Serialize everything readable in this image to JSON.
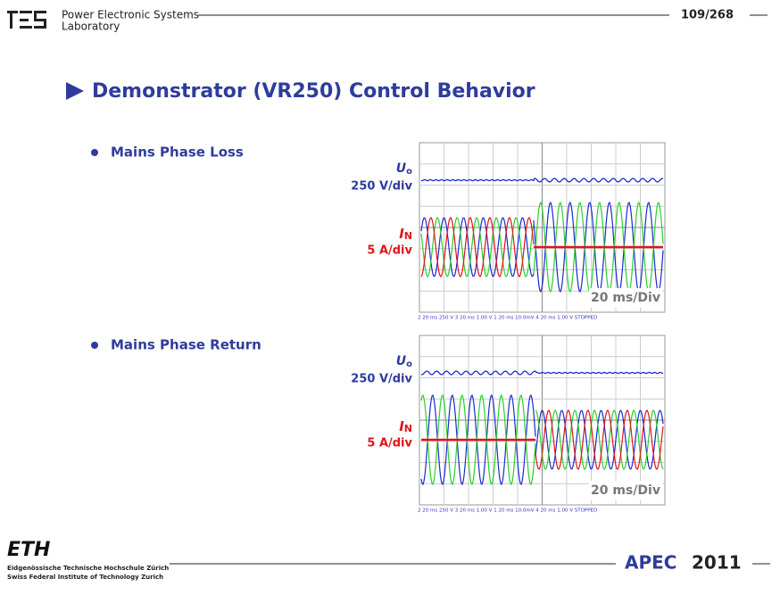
{
  "header": {
    "lab_line1": "Power Electronic Systems",
    "lab_line2": "Laboratory",
    "page": "109/268"
  },
  "title": "Demonstrator (VR250) Control Behavior",
  "sections": [
    {
      "bullet": "Mains Phase Loss",
      "scope": {
        "voltage_symbol": "U",
        "voltage_subscript": "o",
        "voltage_scale": "250 V/div",
        "current_symbol": "I",
        "current_subscript": "N",
        "current_scale": "5 A/div",
        "time_scale": "20 ms/Div",
        "status": "2 20 ms 250 V   3 20 ms 1.00 V   1 20 ms 10.0mV   4 20 ms 1.00 V   STOPPED"
      }
    },
    {
      "bullet": "Mains Phase Return",
      "scope": {
        "voltage_symbol": "U",
        "voltage_subscript": "o",
        "voltage_scale": "250 V/div",
        "current_symbol": "I",
        "current_subscript": "N",
        "current_scale": "5 A/div",
        "time_scale": "20 ms/Div",
        "status": "2 20 ms 250 V   3 20 ms 1.00 V   1 20 ms 10.0mV   4 20 ms 1.00 V   STOPPED"
      }
    }
  ],
  "footer": {
    "eth": "ETH",
    "eth_line1": "Eidgenössische Technische Hochschule Zürich",
    "eth_line2": "Swiss Federal Institute of Technology Zurich",
    "conference": "APEC",
    "year": "2011"
  }
}
